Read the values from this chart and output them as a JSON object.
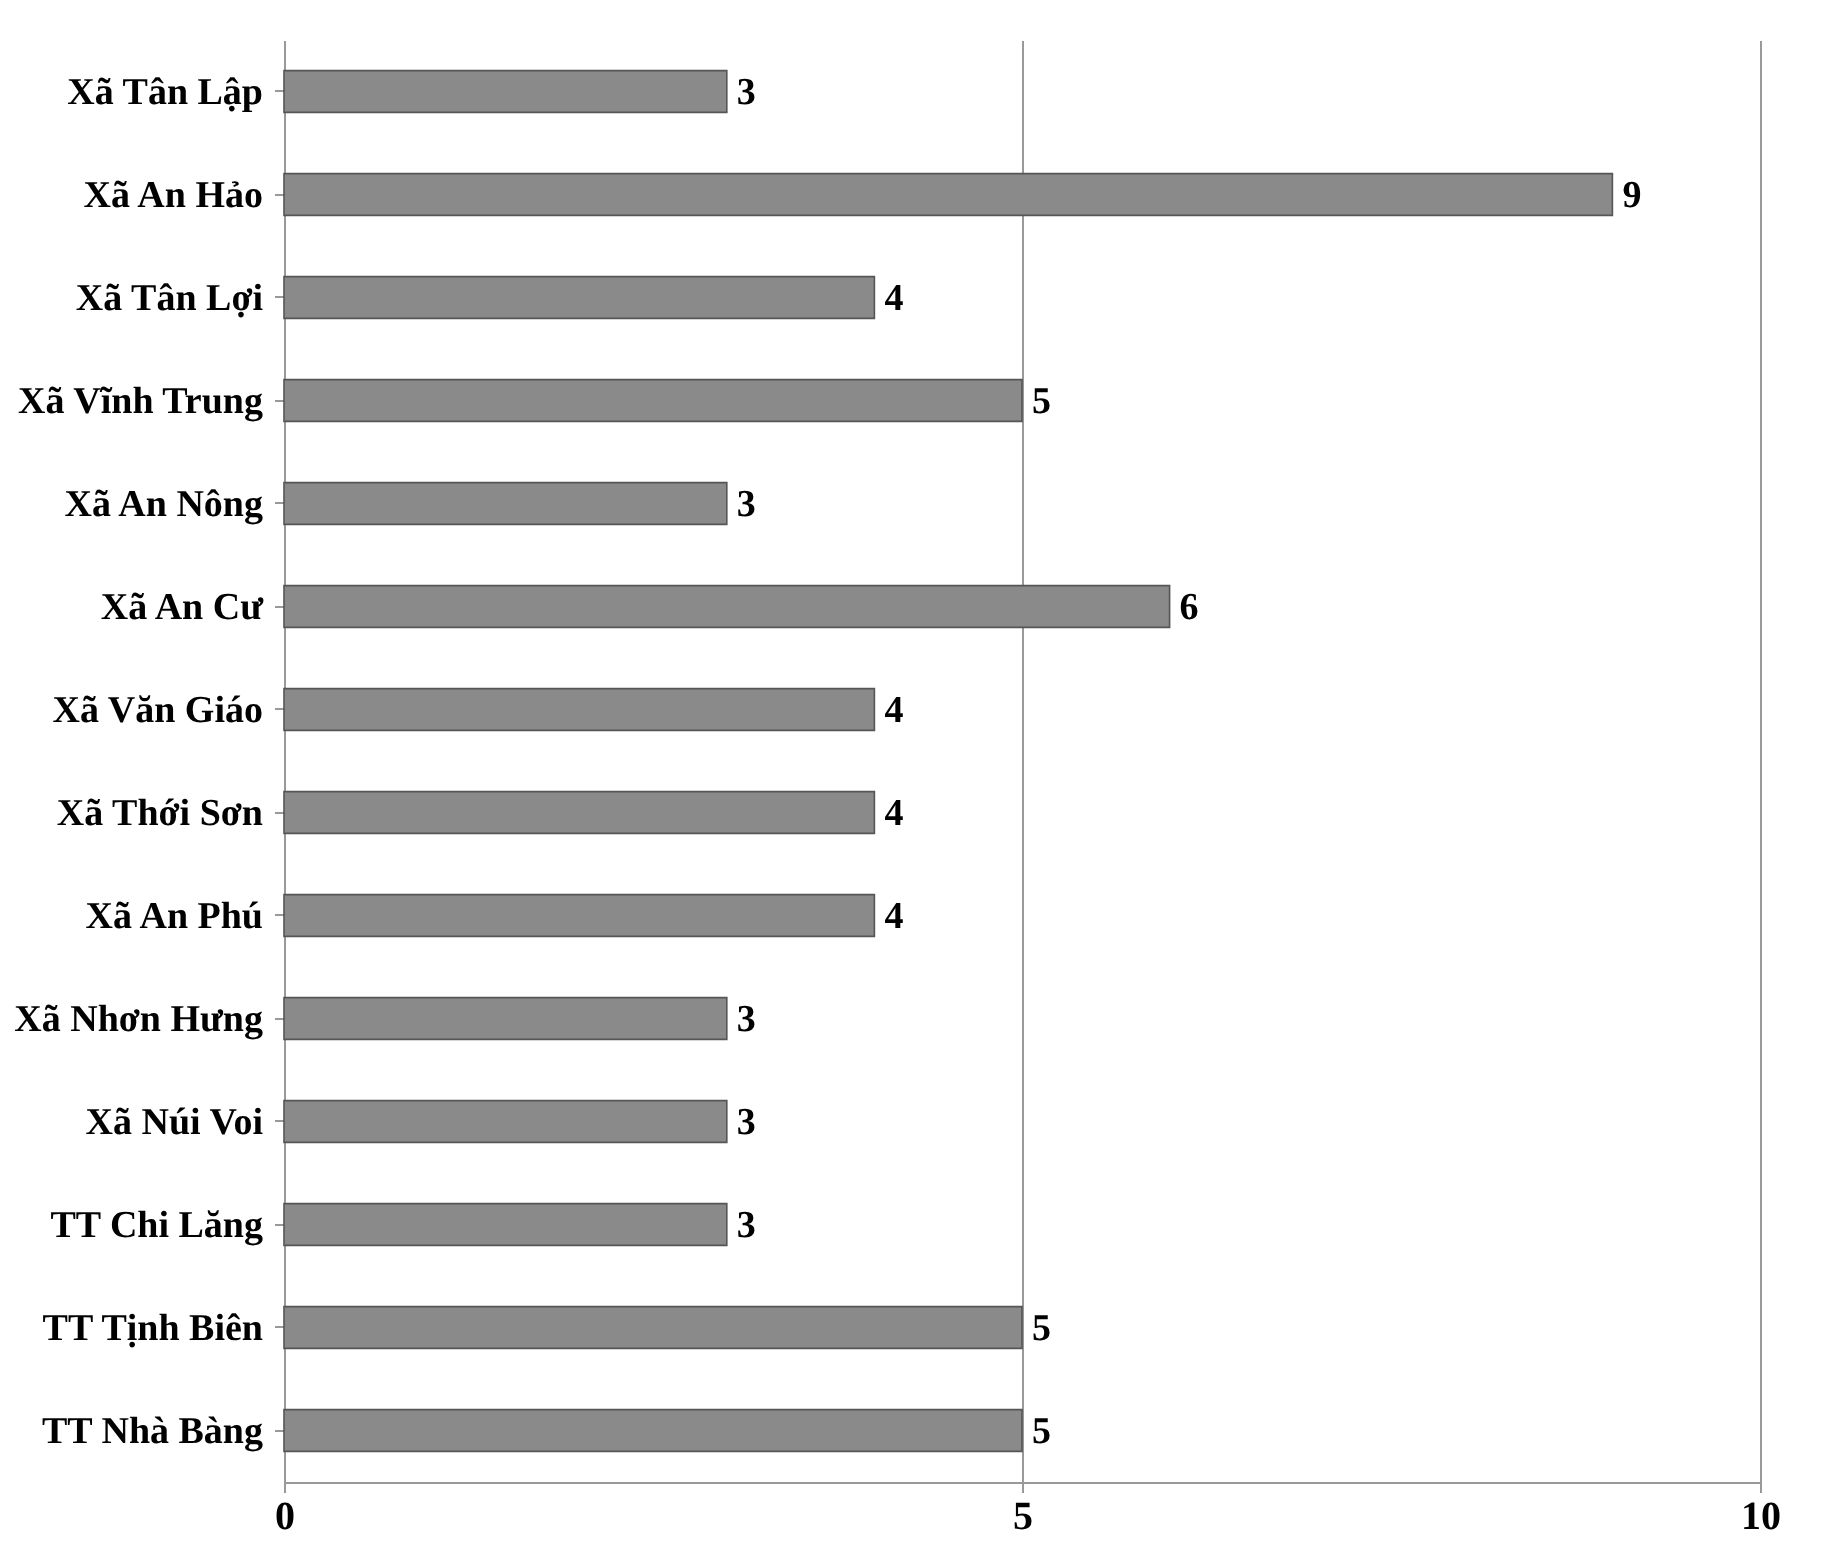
{
  "chart_data": {
    "type": "bar",
    "orientation": "horizontal",
    "categories": [
      "Xã Tân Lập",
      "Xã An Hảo",
      "Xã Tân Lợi",
      "Xã Vĩnh Trung",
      "Xã An Nông",
      "Xã An Cư",
      "Xã Văn Giáo",
      "Xã Thới Sơn",
      "Xã An Phú",
      "Xã Nhơn Hưng",
      "Xã Núi Voi",
      "TT Chi Lăng",
      "TT Tịnh  Biên",
      "TT Nhà Bàng"
    ],
    "values": [
      3,
      9,
      4,
      5,
      3,
      6,
      4,
      4,
      4,
      3,
      3,
      3,
      5,
      5
    ],
    "color": "#8a8a8a",
    "xlim": [
      0,
      10
    ],
    "xticks": [
      0,
      5,
      10
    ],
    "grid": "x",
    "data_labels": true
  }
}
